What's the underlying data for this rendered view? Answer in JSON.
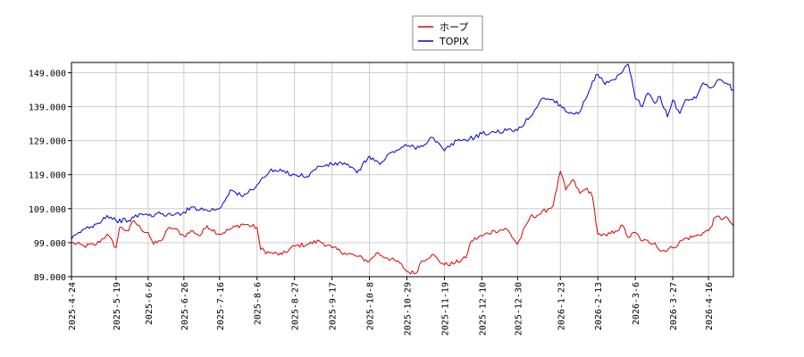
{
  "chart_data": {
    "type": "line",
    "title": "",
    "xlabel": "",
    "ylabel": "",
    "ylim": [
      89,
      152
    ],
    "y_ticks": [
      89,
      99,
      109,
      119,
      129,
      139,
      149
    ],
    "y_tick_labels": [
      "89.000",
      "99.000",
      "109.000",
      "119.000",
      "129.000",
      "139.000",
      "149.000"
    ],
    "x_range": [
      "2025-04-24",
      "2026-04-30"
    ],
    "x_ticks": [
      "2025-4-24",
      "2025-5-19",
      "2025-6-6",
      "2025-6-26",
      "2025-7-16",
      "2025-8-6",
      "2025-8-27",
      "2025-9-17",
      "2025-10-8",
      "2025-10-29",
      "2025-11-19",
      "2025-12-10",
      "2025-12-30",
      "2026-1-23",
      "2026-2-13",
      "2026-3-6",
      "2026-3-27",
      "2026-4-16"
    ],
    "grid": true,
    "legend_position": "top-center",
    "series": [
      {
        "name": "ホープ",
        "color": "#dd0000",
        "points": [
          [
            "2025-04-24",
            99.0
          ],
          [
            "2025-05-01",
            98.0
          ],
          [
            "2025-05-08",
            98.5
          ],
          [
            "2025-05-14",
            101.5
          ],
          [
            "2025-05-19",
            97.5
          ],
          [
            "2025-05-21",
            103.5
          ],
          [
            "2025-05-26",
            102.5
          ],
          [
            "2025-05-29",
            105.5
          ],
          [
            "2025-06-02",
            103.0
          ],
          [
            "2025-06-06",
            102.0
          ],
          [
            "2025-06-09",
            98.5
          ],
          [
            "2025-06-13",
            99.5
          ],
          [
            "2025-06-18",
            103.5
          ],
          [
            "2025-06-21",
            103.0
          ],
          [
            "2025-06-26",
            101.0
          ],
          [
            "2025-07-01",
            102.5
          ],
          [
            "2025-07-05",
            101.0
          ],
          [
            "2025-07-09",
            104.0
          ],
          [
            "2025-07-16",
            101.5
          ],
          [
            "2025-07-22",
            103.0
          ],
          [
            "2025-07-29",
            104.5
          ],
          [
            "2025-08-06",
            103.5
          ],
          [
            "2025-08-08",
            97.0
          ],
          [
            "2025-08-13",
            96.0
          ],
          [
            "2025-08-20",
            95.5
          ],
          [
            "2025-08-27",
            98.0
          ],
          [
            "2025-09-03",
            98.5
          ],
          [
            "2025-09-10",
            99.5
          ],
          [
            "2025-09-17",
            97.5
          ],
          [
            "2025-09-24",
            96.0
          ],
          [
            "2025-10-01",
            95.0
          ],
          [
            "2025-10-08",
            93.5
          ],
          [
            "2025-10-12",
            96.0
          ],
          [
            "2025-10-18",
            94.5
          ],
          [
            "2025-10-25",
            93.0
          ],
          [
            "2025-10-29",
            90.5
          ],
          [
            "2025-11-03",
            90.0
          ],
          [
            "2025-11-06",
            93.5
          ],
          [
            "2025-11-12",
            95.5
          ],
          [
            "2025-11-19",
            92.5
          ],
          [
            "2025-11-25",
            93.0
          ],
          [
            "2025-12-01",
            94.5
          ],
          [
            "2025-12-04",
            99.5
          ],
          [
            "2025-12-10",
            101.0
          ],
          [
            "2025-12-17",
            102.5
          ],
          [
            "2025-12-24",
            103.0
          ],
          [
            "2025-12-30",
            98.5
          ],
          [
            "2026-01-06",
            106.5
          ],
          [
            "2026-01-12",
            107.5
          ],
          [
            "2026-01-19",
            110.0
          ],
          [
            "2026-01-23",
            120.0
          ],
          [
            "2026-01-26",
            114.5
          ],
          [
            "2026-01-30",
            117.5
          ],
          [
            "2026-02-03",
            113.5
          ],
          [
            "2026-02-07",
            115.0
          ],
          [
            "2026-02-10",
            112.5
          ],
          [
            "2026-02-13",
            101.5
          ],
          [
            "2026-02-18",
            101.0
          ],
          [
            "2026-02-23",
            102.5
          ],
          [
            "2026-02-27",
            104.0
          ],
          [
            "2026-03-02",
            100.5
          ],
          [
            "2026-03-06",
            102.0
          ],
          [
            "2026-03-10",
            99.5
          ],
          [
            "2026-03-17",
            99.0
          ],
          [
            "2026-03-20",
            96.5
          ],
          [
            "2026-03-27",
            97.5
          ],
          [
            "2026-04-02",
            100.0
          ],
          [
            "2026-04-09",
            101.0
          ],
          [
            "2026-04-16",
            102.5
          ],
          [
            "2026-04-20",
            106.5
          ],
          [
            "2026-04-27",
            106.0
          ],
          [
            "2026-04-30",
            104.0
          ]
        ]
      },
      {
        "name": "TOPIX",
        "color": "#0000cc",
        "points": [
          [
            "2025-04-24",
            100.0
          ],
          [
            "2025-05-01",
            103.0
          ],
          [
            "2025-05-08",
            104.5
          ],
          [
            "2025-05-14",
            107.0
          ],
          [
            "2025-05-19",
            105.5
          ],
          [
            "2025-05-26",
            105.5
          ],
          [
            "2025-06-02",
            107.5
          ],
          [
            "2025-06-06",
            107.0
          ],
          [
            "2025-06-13",
            107.5
          ],
          [
            "2025-06-20",
            107.0
          ],
          [
            "2025-06-26",
            108.0
          ],
          [
            "2025-07-01",
            109.5
          ],
          [
            "2025-07-09",
            108.5
          ],
          [
            "2025-07-16",
            109.0
          ],
          [
            "2025-07-22",
            114.5
          ],
          [
            "2025-07-29",
            112.5
          ],
          [
            "2025-08-06",
            116.0
          ],
          [
            "2025-08-13",
            120.0
          ],
          [
            "2025-08-20",
            120.0
          ],
          [
            "2025-08-27",
            119.0
          ],
          [
            "2025-09-03",
            118.5
          ],
          [
            "2025-09-10",
            121.5
          ],
          [
            "2025-09-17",
            122.0
          ],
          [
            "2025-09-24",
            122.5
          ],
          [
            "2025-10-01",
            119.5
          ],
          [
            "2025-10-08",
            124.5
          ],
          [
            "2025-10-14",
            122.0
          ],
          [
            "2025-10-20",
            125.5
          ],
          [
            "2025-10-29",
            127.5
          ],
          [
            "2025-11-05",
            127.0
          ],
          [
            "2025-11-12",
            130.0
          ],
          [
            "2025-11-19",
            126.0
          ],
          [
            "2025-11-26",
            129.0
          ],
          [
            "2025-12-03",
            129.5
          ],
          [
            "2025-12-10",
            131.0
          ],
          [
            "2025-12-17",
            131.5
          ],
          [
            "2025-12-24",
            132.0
          ],
          [
            "2025-12-30",
            132.0
          ],
          [
            "2026-01-06",
            136.0
          ],
          [
            "2026-01-13",
            141.5
          ],
          [
            "2026-01-19",
            141.0
          ],
          [
            "2026-01-23",
            139.5
          ],
          [
            "2026-01-28",
            137.0
          ],
          [
            "2026-02-03",
            137.5
          ],
          [
            "2026-02-06",
            141.0
          ],
          [
            "2026-02-10",
            146.5
          ],
          [
            "2026-02-13",
            148.5
          ],
          [
            "2026-02-17",
            145.5
          ],
          [
            "2026-02-23",
            147.0
          ],
          [
            "2026-03-02",
            151.5
          ],
          [
            "2026-03-06",
            141.5
          ],
          [
            "2026-03-10",
            139.0
          ],
          [
            "2026-03-13",
            143.0
          ],
          [
            "2026-03-17",
            140.0
          ],
          [
            "2026-03-20",
            142.0
          ],
          [
            "2026-03-24",
            136.0
          ],
          [
            "2026-03-27",
            141.0
          ],
          [
            "2026-03-31",
            137.0
          ],
          [
            "2026-04-03",
            141.0
          ],
          [
            "2026-04-09",
            141.5
          ],
          [
            "2026-04-13",
            146.0
          ],
          [
            "2026-04-17",
            144.5
          ],
          [
            "2026-04-22",
            147.0
          ],
          [
            "2026-04-27",
            145.5
          ],
          [
            "2026-04-30",
            144.0
          ]
        ]
      }
    ]
  }
}
